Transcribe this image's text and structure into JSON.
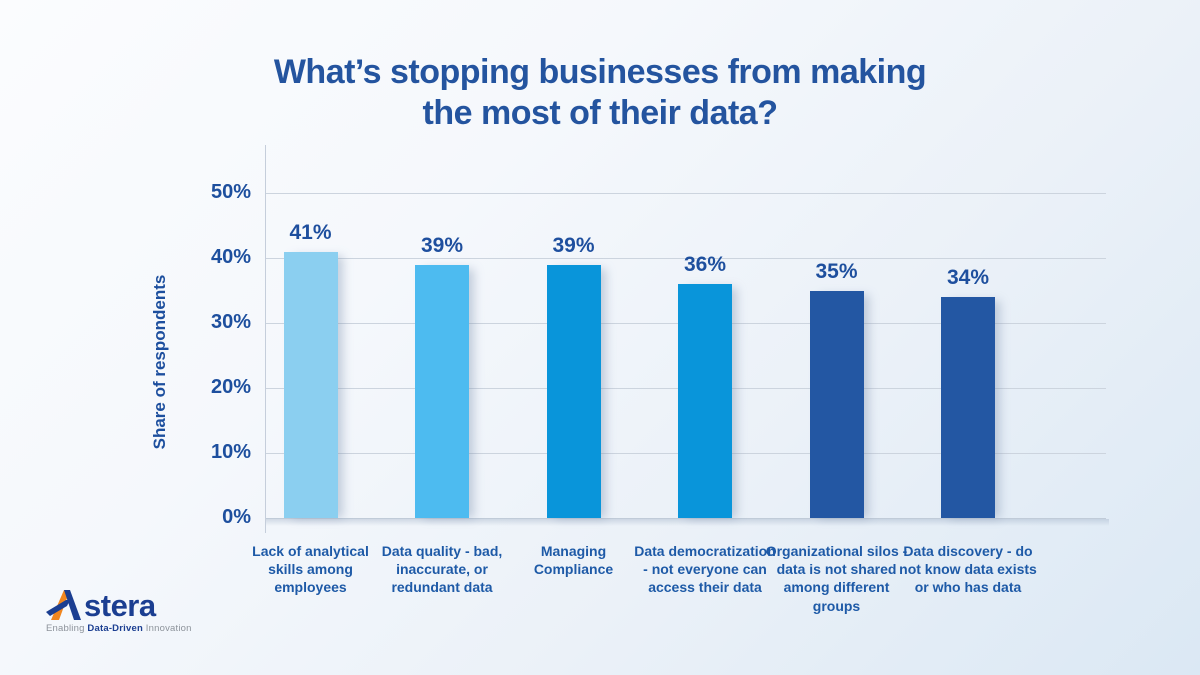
{
  "title": {
    "full": "What’s stopping businesses from making the most of their data?",
    "lines": [
      "What’s stopping businesses from making",
      "the most of their data?"
    ]
  },
  "chart_data": {
    "type": "bar",
    "title": "What’s stopping businesses from making the most of their data?",
    "categories": [
      "Lack of analytical skills among employees",
      "Data quality - bad, inaccurate, or redundant data",
      "Managing Compliance",
      "Data democratization - not everyone can access their data",
      "Organizational silos - data is not shared among different groups",
      "Data discovery - do not know data exists or who has data"
    ],
    "values": [
      41,
      39,
      39,
      36,
      35,
      34
    ],
    "value_labels": [
      "41%",
      "39%",
      "39%",
      "36%",
      "35%",
      "34%"
    ],
    "bar_colors": [
      "#8bcff0",
      "#4dbbf0",
      "#0995da",
      "#0995da",
      "#2357a3",
      "#2357a3"
    ],
    "xlabel": "",
    "ylabel": "Share of respondents",
    "yticks": [
      0,
      10,
      20,
      30,
      40,
      50
    ],
    "ytick_labels": [
      "0%",
      "10%",
      "20%",
      "30%",
      "40%",
      "50%"
    ],
    "ylim": [
      0,
      55
    ],
    "grid": true,
    "legend": false
  },
  "branding": {
    "logo_text_a": "A",
    "logo_text_rest": "stera",
    "tagline_prefix": "Enabling ",
    "tagline_bold": "Data-Driven",
    "tagline_suffix": " Innovation"
  },
  "colors": {
    "title_text": "#24549f",
    "axis_text": "#1d4f9e",
    "value_text": "#1e4f9e",
    "category_text": "#1e5aa7",
    "gridline": "#ccd4de",
    "logo_navy": "#1b3e91",
    "logo_orange": "#f0861f",
    "tagline_gray": "#8d939b"
  }
}
